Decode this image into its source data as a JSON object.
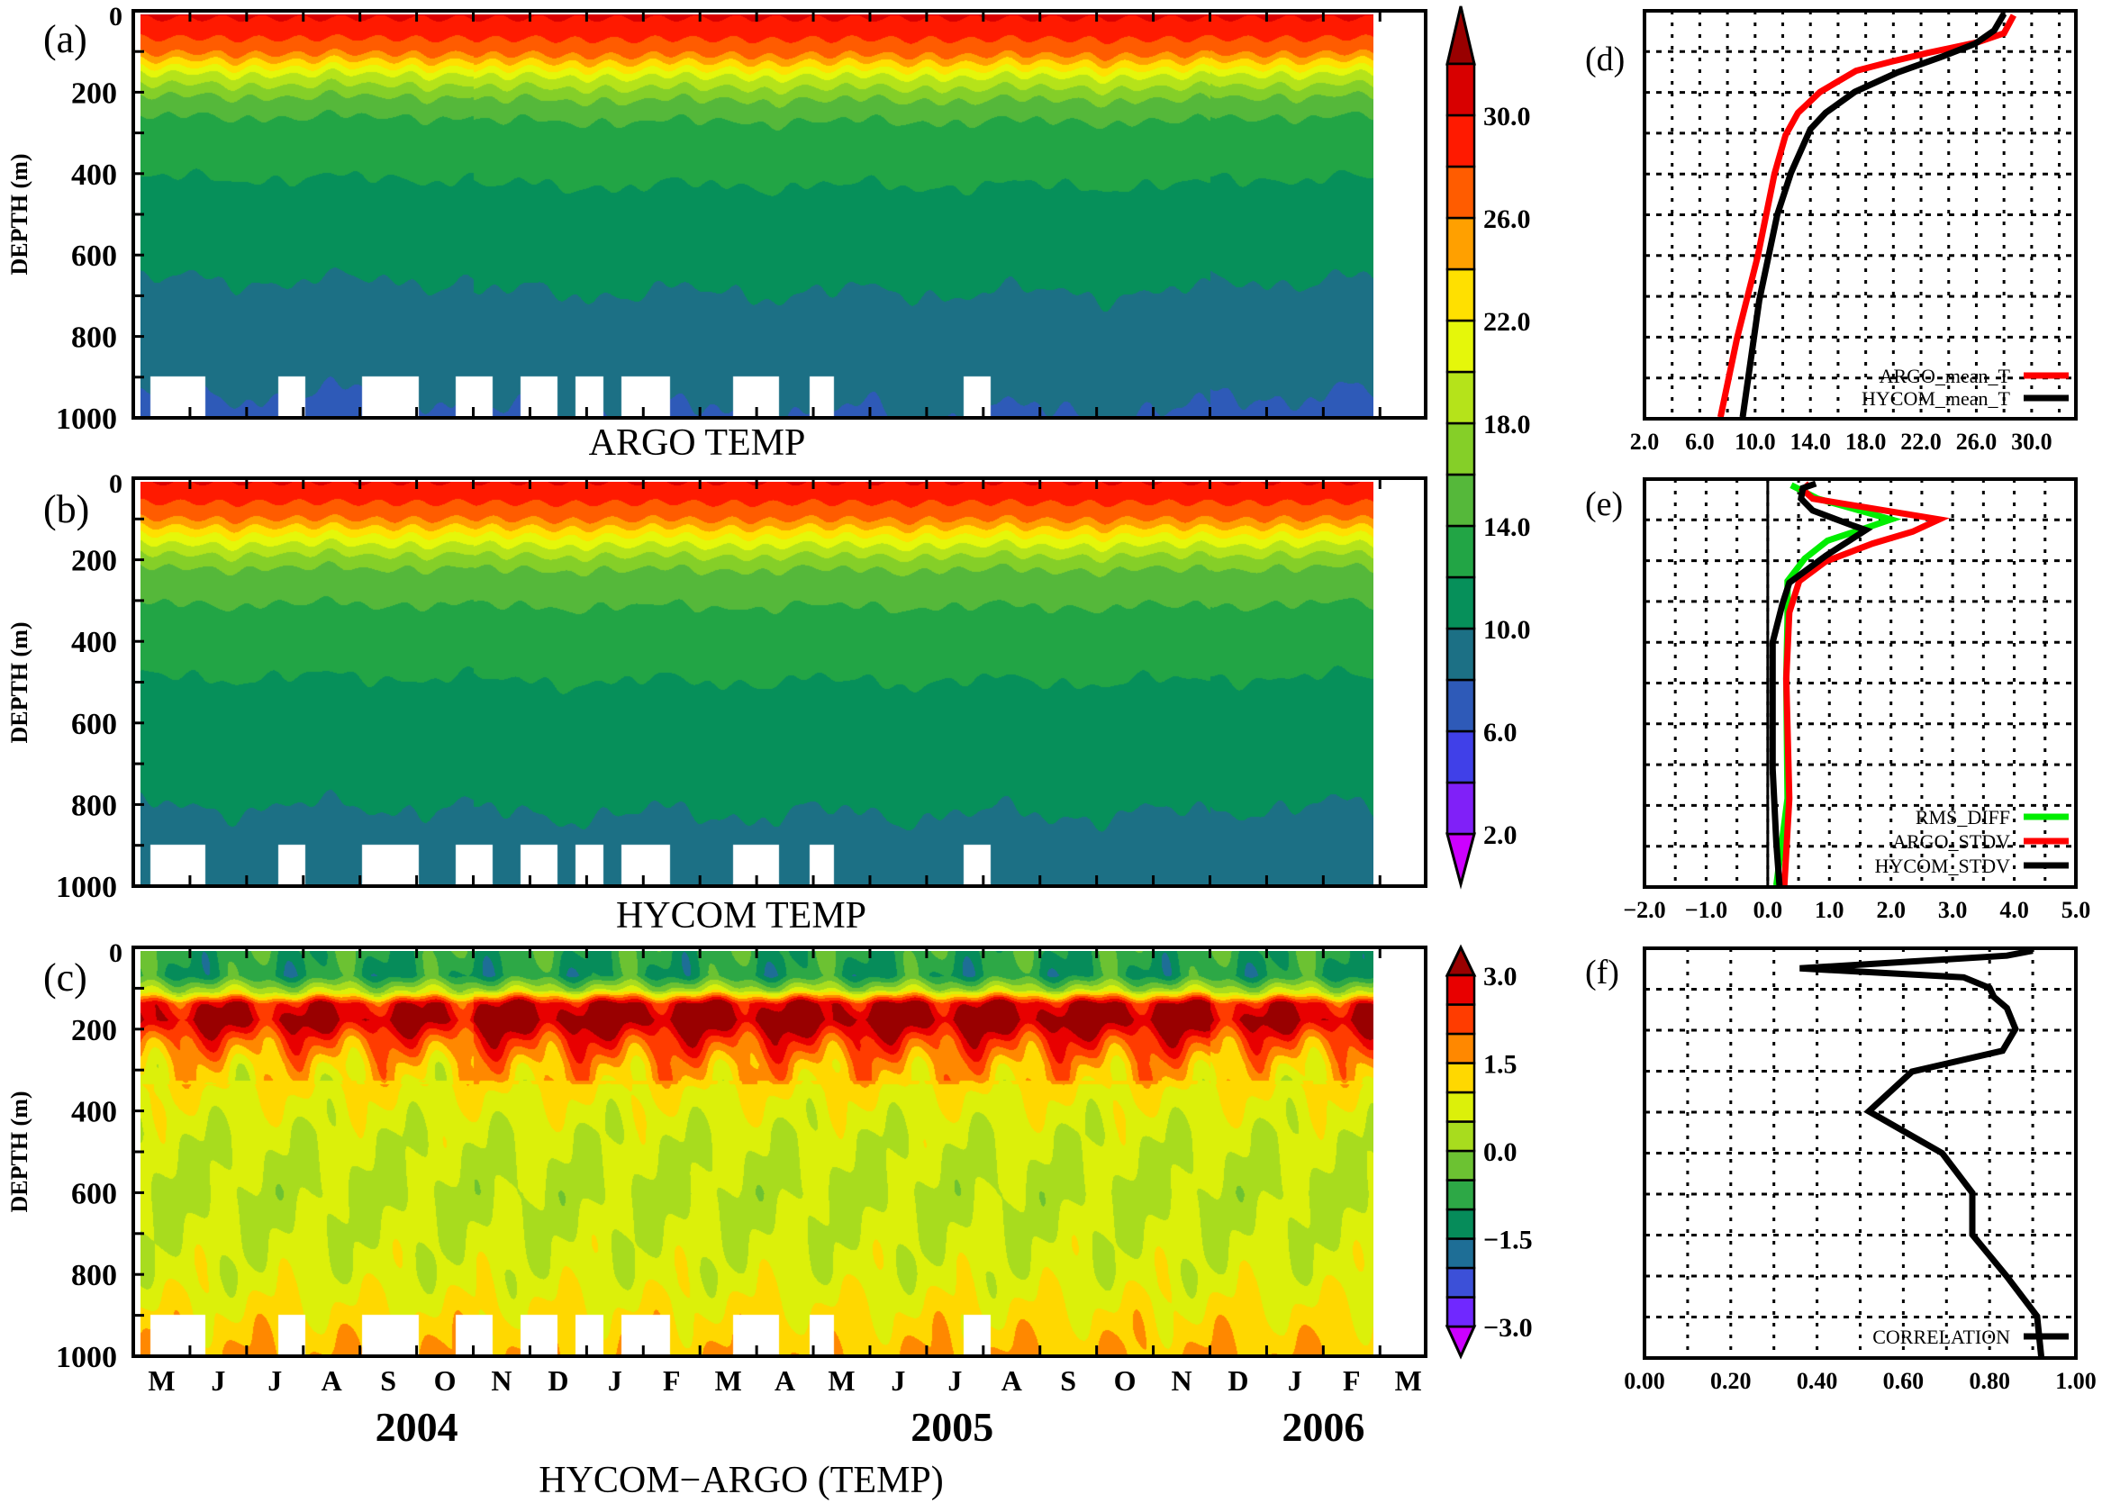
{
  "colors": {
    "temp_levels": [
      2,
      4,
      6,
      8,
      10,
      12,
      14,
      16,
      18,
      20,
      22,
      24,
      26,
      28,
      30,
      32
    ],
    "temp_bands": [
      "#8020F8",
      "#4040E8",
      "#2E5AB8",
      "#1C7085",
      "#06905A",
      "#22A545",
      "#55B83A",
      "#85CF28",
      "#B5E31A",
      "#E5F70A",
      "#FFE000",
      "#FFA000",
      "#FF5C00",
      "#FF1A00",
      "#D80000"
    ],
    "temp_under": "#CC00FF",
    "temp_over": "#990000",
    "diff_levels": [
      -3,
      -2.5,
      -2,
      -1.5,
      -1,
      -0.5,
      0,
      0.5,
      1,
      1.5,
      2,
      2.5,
      3
    ],
    "diff_bands": [
      "#7028FF",
      "#3C50D8",
      "#1E6E96",
      "#068C5A",
      "#2DA846",
      "#6CC232",
      "#A8DC1E",
      "#DCF00A",
      "#FFD800",
      "#FF8800",
      "#FF3C00",
      "#E80000"
    ],
    "diff_under": "#CC00FF",
    "diff_over": "#990000",
    "argo": "#FF0000",
    "hycom": "#000000",
    "rms": "#00EE00"
  },
  "time_axis": {
    "xlim": [
      "2004-05-01",
      "2006-03-26"
    ],
    "month_labels": [
      "M",
      "J",
      "J",
      "A",
      "S",
      "O",
      "N",
      "D",
      "J",
      "F",
      "M",
      "A",
      "M",
      "J",
      "J",
      "A",
      "S",
      "O",
      "N",
      "D",
      "J",
      "F",
      "M"
    ],
    "years": [
      {
        "label": "2004",
        "date": "2004-10-01"
      },
      {
        "label": "2005",
        "date": "2005-07-15"
      },
      {
        "label": "2006",
        "date": "2006-02-01"
      }
    ],
    "data_start": "2004-05-05",
    "data_end": "2006-02-26",
    "missing_below_depth": 900,
    "missing_periods": [
      [
        "2004-05-10",
        "2004-06-09"
      ],
      [
        "2004-07-18",
        "2004-08-02"
      ],
      [
        "2004-09-02",
        "2004-10-02"
      ],
      [
        "2004-10-22",
        "2004-11-11"
      ],
      [
        "2004-11-26",
        "2004-12-16"
      ],
      [
        "2004-12-26",
        "2005-01-10"
      ],
      [
        "2005-01-20",
        "2005-02-14"
      ],
      [
        "2005-03-19",
        "2005-04-13"
      ],
      [
        "2005-04-29",
        "2005-05-12"
      ],
      [
        "2005-07-21",
        "2005-08-05"
      ]
    ]
  },
  "depth_axis": {
    "label": "DEPTH (m)",
    "ylim": [
      0,
      1000
    ],
    "tick_labels": [
      "0",
      "200",
      "400",
      "600",
      "800",
      "1000"
    ]
  },
  "chart_data": [
    {
      "panel": "(a)",
      "type": "heatmap",
      "title": "ARGO TEMP",
      "ylabel": "DEPTH (m)",
      "ylim": [
        0,
        1000
      ],
      "mean_profile": {
        "depth": [
          0,
          40,
          90,
          120,
          150,
          200,
          250,
          400,
          650,
          930,
          1000
        ],
        "value": [
          30.3,
          28.8,
          26.5,
          23,
          19.5,
          16,
          14,
          12,
          10,
          8,
          7.5
        ]
      },
      "colorbar_ticks": [
        "2.0",
        "6.0",
        "10.0",
        "14.0",
        "18.0",
        "22.0",
        "26.0",
        "30.0"
      ]
    },
    {
      "panel": "(b)",
      "type": "heatmap",
      "title": "HYCOM TEMP",
      "ylabel": "DEPTH (m)",
      "ylim": [
        0,
        1000
      ],
      "mean_profile": {
        "depth": [
          0,
          40,
          90,
          130,
          170,
          220,
          300,
          480,
          800,
          1000
        ],
        "value": [
          30,
          28.5,
          26,
          22,
          18.5,
          15.5,
          14,
          12,
          10,
          9
        ]
      }
    },
    {
      "panel": "(c)",
      "type": "heatmap",
      "title": "HYCOM−ARGO (TEMP)",
      "ylabel": "DEPTH (m)",
      "ylim": [
        0,
        1000
      ],
      "mean_profile": {
        "depth": [
          0,
          60,
          100,
          130,
          170,
          220,
          280,
          350,
          450,
          600,
          800,
          950,
          1000
        ],
        "value": [
          -0.8,
          -1.0,
          0.5,
          2.8,
          3.3,
          2.2,
          1.4,
          1.0,
          0.6,
          0.4,
          0.7,
          1.3,
          1.5
        ]
      },
      "colorbar_ticks": [
        "−3.0",
        "−1.5",
        "0.0",
        "1.5",
        "3.0"
      ]
    },
    {
      "panel": "(d)",
      "type": "line",
      "xlim": [
        2,
        33.2
      ],
      "ylim": [
        0,
        1000
      ],
      "grid": true,
      "legend": "bottom-right",
      "x_tick_labels": [
        "2.0",
        "6.0",
        "10.0",
        "14.0",
        "18.0",
        "22.0",
        "26.0",
        "30.0"
      ],
      "series": [
        {
          "name": "ARGO_mean_T",
          "color": "#FF0000",
          "depth": [
            11,
            55,
            77,
            103,
            125,
            147,
            199,
            250,
            305,
            400,
            600,
            801,
            996
          ],
          "values": [
            28.7,
            28.0,
            26.1,
            22.5,
            19.8,
            17.3,
            14.7,
            13.1,
            12.2,
            11.4,
            10.2,
            8.7,
            7.5
          ]
        },
        {
          "name": "HYCOM_mean_T",
          "color": "#000000",
          "depth": [
            7,
            48,
            81,
            114,
            151,
            199,
            250,
            290,
            397,
            500,
            710,
            996
          ],
          "values": [
            28.0,
            27.3,
            25.9,
            23.4,
            20.3,
            17.2,
            15.1,
            14.0,
            12.6,
            11.6,
            10.3,
            9.1
          ]
        }
      ]
    },
    {
      "panel": "(e)",
      "type": "line",
      "xlim": [
        -2,
        5
      ],
      "ylim": [
        0,
        1000
      ],
      "grid": true,
      "legend": "bottom-right",
      "x_tick_labels": [
        "−2.0",
        "−1.0",
        "0.0",
        "1.0",
        "2.0",
        "3.0",
        "4.0",
        "5.0"
      ],
      "series": [
        {
          "name": "RMS_DIFF",
          "color": "#00EE00",
          "depth": [
            15,
            48,
            99,
            121,
            151,
            195,
            250,
            342,
            489,
            783,
            996
          ],
          "values": [
            0.38,
            0.81,
            2.0,
            1.57,
            0.97,
            0.6,
            0.32,
            0.32,
            0.3,
            0.32,
            0.14
          ]
        },
        {
          "name": "ARGO_STDV",
          "color": "#FF0000",
          "depth": [
            11,
            26,
            48,
            99,
            129,
            158,
            202,
            250,
            327,
            489,
            783,
            996
          ],
          "values": [
            0.68,
            0.57,
            0.73,
            2.78,
            2.35,
            1.7,
            0.94,
            0.51,
            0.35,
            0.3,
            0.35,
            0.27
          ]
        },
        {
          "name": "HYCOM_STDV",
          "color": "#000000",
          "depth": [
            11,
            22,
            48,
            77,
            114,
            125,
            188,
            254,
            305,
            400,
            710,
            893,
            996
          ],
          "values": [
            0.78,
            0.57,
            0.54,
            0.73,
            1.38,
            1.59,
            0.94,
            0.35,
            0.24,
            0.08,
            0.08,
            0.14,
            0.19
          ]
        }
      ]
    },
    {
      "panel": "(f)",
      "type": "line",
      "xlim": [
        0,
        1
      ],
      "ylim": [
        0,
        1000
      ],
      "grid": true,
      "legend": "bottom-right",
      "x_tick_labels": [
        "0.00",
        "0.20",
        "0.40",
        "0.60",
        "0.80",
        "1.00"
      ],
      "series": [
        {
          "name": "CORRELATION",
          "color": "#000000",
          "depth": [
            6,
            18,
            49,
            71,
            97,
            119,
            146,
            197,
            250,
            301,
            398,
            500,
            597,
            699,
            801,
            898,
            1000
          ],
          "values": [
            0.9,
            0.84,
            0.36,
            0.74,
            0.8,
            0.81,
            0.84,
            0.86,
            0.83,
            0.62,
            0.52,
            0.69,
            0.76,
            0.76,
            0.84,
            0.91,
            0.92
          ]
        }
      ]
    }
  ]
}
